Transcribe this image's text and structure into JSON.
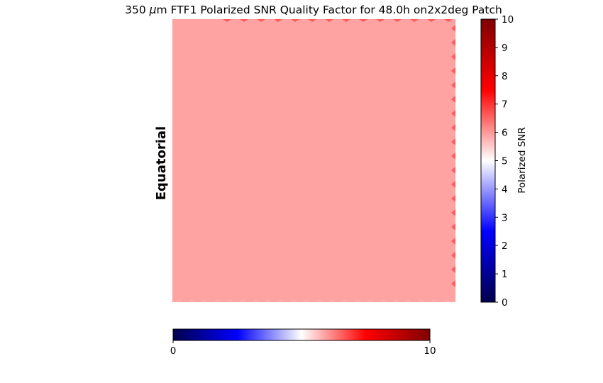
{
  "chart_data": {
    "type": "heatmap",
    "title_prefix": "350 ",
    "title_mu": "μ",
    "title_suffix": "m FTF1 Polarized SNR Quality Factor for 48.0h on2x2deg Patch",
    "row_label": "Equatorial",
    "map_value": 6.2,
    "edge_value": 6.6,
    "bottom_edge_value": 5.8,
    "colormap": "seismic",
    "colors": {
      "low": "#00004c",
      "blue": "#0000ff",
      "mid": "#ffffff",
      "red": "#ff0000",
      "high": "#800000",
      "map_fill": "#ffa2a2"
    },
    "vertical_colorbar": {
      "label": "Polarized SNR",
      "range": [
        0,
        10
      ],
      "ticks": [
        "0",
        "1",
        "2",
        "3",
        "4",
        "5",
        "6",
        "7",
        "8",
        "9",
        "10"
      ]
    },
    "horizontal_colorbar": {
      "range": [
        0,
        10
      ],
      "ticks": [
        "0",
        "10"
      ]
    }
  }
}
